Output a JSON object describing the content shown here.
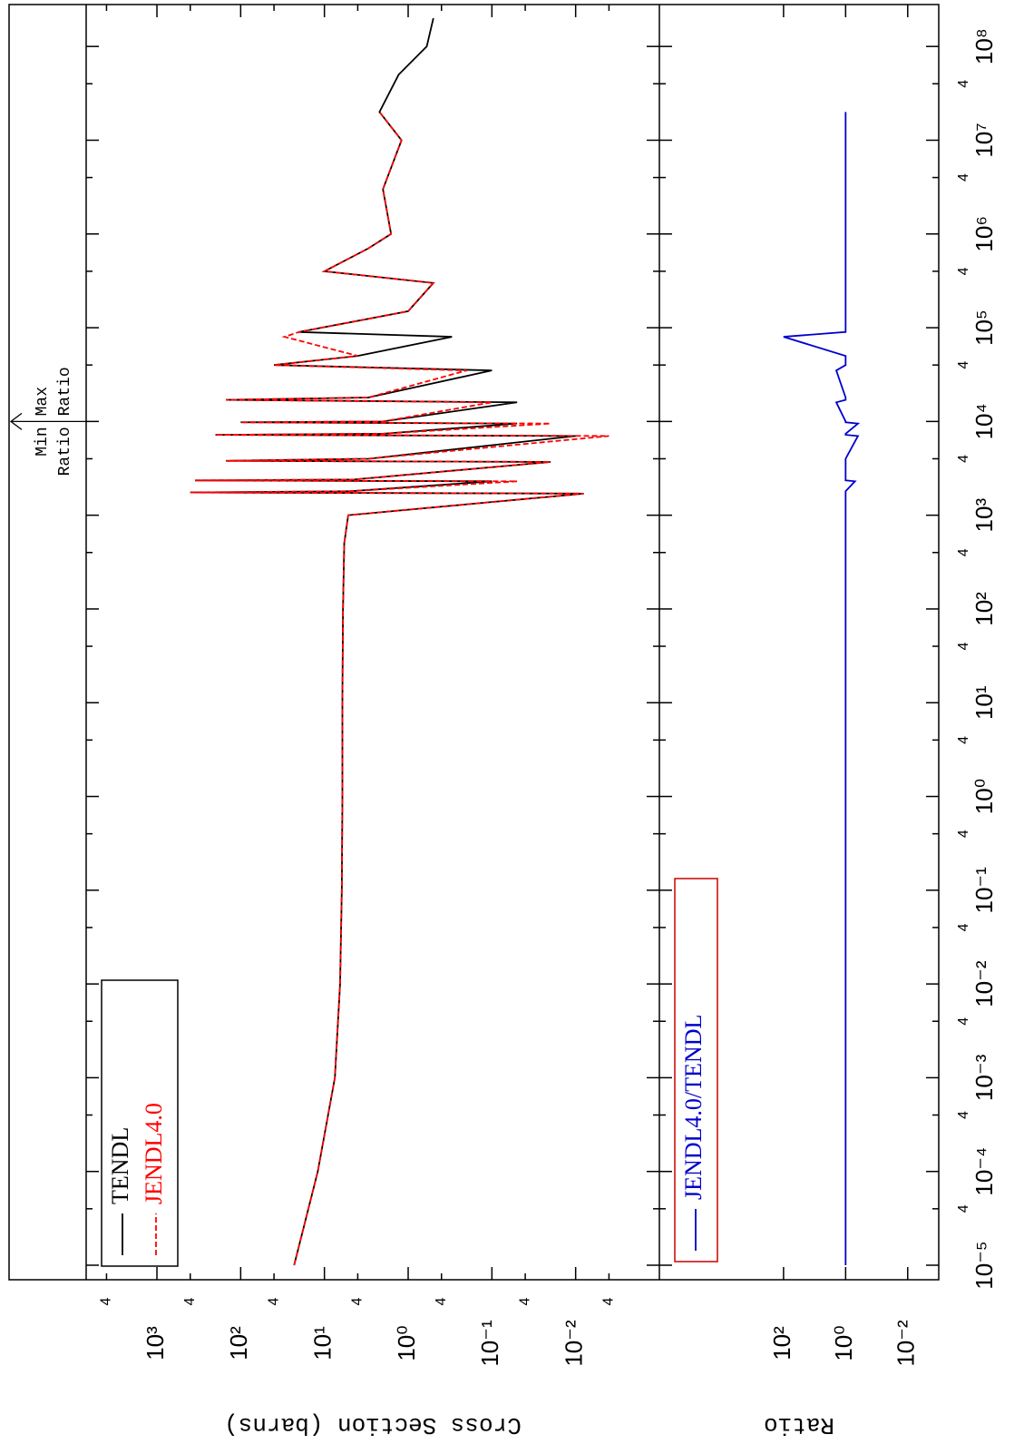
{
  "chart_data": [
    {
      "type": "line",
      "y_label": "Cross Section (barns)",
      "x": [
        1e-05,
        0.0001,
        0.001,
        0.01,
        0.1,
        1,
        10,
        100,
        500,
        1000,
        1700,
        1750,
        1800,
        2300,
        2350,
        2400,
        3700,
        3800,
        4000,
        7000,
        7200,
        7400,
        9500,
        9800,
        10000,
        16000,
        17000,
        18000,
        35000,
        40000,
        50000,
        80000,
        90000,
        150000,
        300000,
        400000,
        700000,
        1000000,
        3000000,
        10000000,
        20000000,
        50000000,
        100000000,
        200000000
      ],
      "series": [
        {
          "name": "TENDL",
          "color": "#000000",
          "dashed": false,
          "values": [
            23,
            12,
            7.5,
            6.5,
            6.2,
            6.1,
            6.1,
            6.0,
            5.8,
            5.2,
            0.008,
            400,
            5,
            0.1,
            350,
            4.5,
            0.02,
            150,
            3,
            0.01,
            200,
            2,
            0.05,
            100,
            2,
            0.05,
            150,
            3,
            0.1,
            40,
            4,
            0.3,
            20,
            1,
            0.5,
            10,
            3,
            1.6,
            2.0,
            1.2,
            2.2,
            1.3,
            0.6,
            0.5
          ]
        },
        {
          "name": "JENDL4.0",
          "color": "#ff0000",
          "dashed": true,
          "values": [
            23,
            12,
            7.5,
            6.5,
            6.2,
            6.1,
            6.1,
            6.0,
            5.8,
            5.2,
            0.008,
            400,
            5,
            0.05,
            350,
            4.5,
            0.02,
            150,
            3,
            0.004,
            200,
            2,
            0.02,
            100,
            2,
            0.1,
            150,
            3,
            0.2,
            40,
            4,
            30,
            20,
            1,
            0.5,
            10,
            3,
            1.6,
            2.0,
            1.2,
            2.2,
            null,
            null,
            null
          ]
        }
      ],
      "xlim": [
        7e-06,
        280000000
      ],
      "ylim": [
        0.001,
        7000
      ],
      "log_x": true,
      "log_y": true,
      "yticks": [
        {
          "value": 0.004,
          "label": "4"
        },
        {
          "value": 0.01,
          "label": "10⁻²"
        },
        {
          "value": 0.04,
          "label": "4"
        },
        {
          "value": 0.1,
          "label": "10⁻¹"
        },
        {
          "value": 0.4,
          "label": "4"
        },
        {
          "value": 1,
          "label": "10⁰"
        },
        {
          "value": 4,
          "label": "4"
        },
        {
          "value": 10,
          "label": "10¹"
        },
        {
          "value": 40,
          "label": "4"
        },
        {
          "value": 100,
          "label": "10²"
        },
        {
          "value": 400,
          "label": "4"
        },
        {
          "value": 1000,
          "label": "10³"
        },
        {
          "value": 4000,
          "label": "4"
        }
      ],
      "legend": "top-left",
      "annotation": {
        "x": 10000,
        "min_label": [
          "Min",
          "Ratio"
        ],
        "max_label": [
          "Max",
          "Ratio"
        ]
      }
    },
    {
      "type": "line",
      "y_label": "Ratio",
      "x": [
        1e-05,
        0.0001,
        0.001,
        0.01,
        0.1,
        1,
        10,
        100,
        500,
        1000,
        1700,
        1750,
        1800,
        2300,
        2350,
        2400,
        3700,
        3800,
        4000,
        7000,
        7200,
        7400,
        9500,
        9800,
        10000,
        16000,
        17000,
        18000,
        35000,
        40000,
        50000,
        80000,
        90000,
        150000,
        300000,
        400000,
        700000,
        1000000,
        3000000,
        10000000,
        20000000,
        50000000,
        100000000,
        200000000
      ],
      "series": [
        {
          "name": "JENDL4.0/TENDL",
          "color": "#0000cc",
          "dashed": false,
          "values": [
            1,
            1,
            1,
            1,
            1,
            1,
            1,
            1,
            1,
            1,
            1,
            1,
            1,
            0.5,
            1,
            1,
            1,
            1,
            1,
            0.4,
            1,
            1,
            0.4,
            1,
            1,
            2,
            1,
            1,
            2,
            1,
            1,
            100,
            1,
            1,
            1,
            1,
            1,
            1,
            1,
            1,
            1,
            null,
            null,
            null
          ]
        }
      ],
      "xlim": [
        7e-06,
        280000000
      ],
      "ylim": [
        0.001,
        1000000
      ],
      "log_x": true,
      "log_y": true,
      "xticks": [
        {
          "value": 1e-05,
          "label": "10⁻⁵"
        },
        {
          "value": 4e-05,
          "label": "4"
        },
        {
          "value": 0.0001,
          "label": "10⁻⁴"
        },
        {
          "value": 0.0004,
          "label": "4"
        },
        {
          "value": 0.001,
          "label": "10⁻³"
        },
        {
          "value": 0.004,
          "label": "4"
        },
        {
          "value": 0.01,
          "label": "10⁻²"
        },
        {
          "value": 0.04,
          "label": "4"
        },
        {
          "value": 0.1,
          "label": "10⁻¹"
        },
        {
          "value": 0.4,
          "label": "4"
        },
        {
          "value": 1,
          "label": "10⁰"
        },
        {
          "value": 4,
          "label": "4"
        },
        {
          "value": 10,
          "label": "10¹"
        },
        {
          "value": 40,
          "label": "4"
        },
        {
          "value": 100,
          "label": "10²"
        },
        {
          "value": 400,
          "label": "4"
        },
        {
          "value": 1000,
          "label": "10³"
        },
        {
          "value": 4000,
          "label": "4"
        },
        {
          "value": 10000,
          "label": "10⁴"
        },
        {
          "value": 40000,
          "label": "4"
        },
        {
          "value": 100000,
          "label": "10⁵"
        },
        {
          "value": 400000,
          "label": "4"
        },
        {
          "value": 1000000,
          "label": "10⁶"
        },
        {
          "value": 4000000,
          "label": "4"
        },
        {
          "value": 10000000,
          "label": "10⁷"
        },
        {
          "value": 40000000,
          "label": "4"
        },
        {
          "value": 100000000,
          "label": "10⁸"
        }
      ],
      "yticks": [
        {
          "value": 0.01,
          "label": "10⁻²"
        },
        {
          "value": 1,
          "label": "10⁰"
        },
        {
          "value": 100,
          "label": "10²"
        }
      ],
      "legend": "top-left",
      "legend_border": "#cc0000"
    }
  ]
}
